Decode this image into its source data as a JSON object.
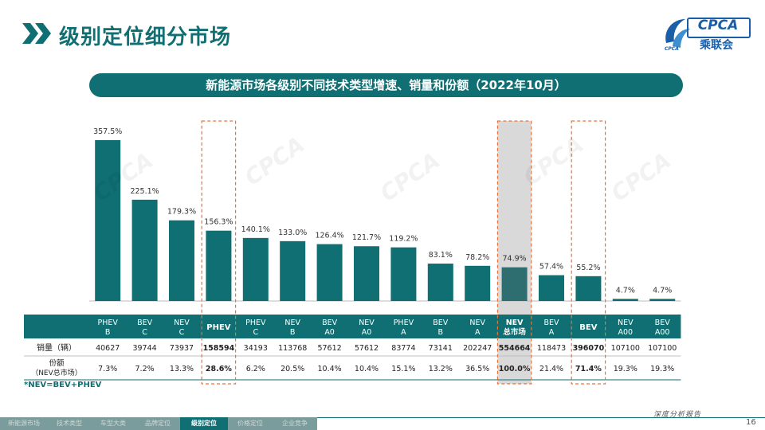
{
  "header": {
    "title": "级别定位细分市场",
    "logo_text": "CPCA",
    "logo_sub": "乘联会"
  },
  "chart_data": {
    "type": "bar",
    "title": "新能源市场各级别不同技术类型增速、销量和份额（2022年10月）",
    "categories": [
      "PHEV B",
      "BEV C",
      "NEV C",
      "PHEV",
      "PHEV C",
      "NEV B",
      "BEV A0",
      "NEV A0",
      "PHEV A",
      "BEV B",
      "NEV A",
      "NEV 总市场",
      "BEV A",
      "BEV",
      "NEV A00",
      "BEV A00"
    ],
    "values": [
      357.5,
      225.1,
      179.3,
      156.3,
      140.1,
      133.0,
      126.4,
      121.7,
      119.2,
      83.1,
      78.2,
      74.9,
      57.4,
      55.2,
      4.7,
      4.7
    ],
    "value_labels": [
      "357.5%",
      "225.1%",
      "179.3%",
      "156.3%",
      "140.1%",
      "133.0%",
      "126.4%",
      "121.7%",
      "119.2%",
      "83.1%",
      "78.2%",
      "74.9%",
      "57.4%",
      "55.2%",
      "4.7%",
      "4.7%"
    ],
    "ylim": [
      0,
      400
    ],
    "bar_color": "#0f6f72",
    "highlight_total_color": "#2e6e70",
    "highlighted_outline": [
      3,
      11,
      13
    ],
    "shaded_column": 11,
    "table": {
      "header_lines": [
        [
          "PHEV",
          "B"
        ],
        [
          "BEV",
          "C"
        ],
        [
          "NEV",
          "C"
        ],
        [
          "PHEV",
          ""
        ],
        [
          "PHEV",
          "C"
        ],
        [
          "NEV",
          "B"
        ],
        [
          "BEV",
          "A0"
        ],
        [
          "NEV",
          "A0"
        ],
        [
          "PHEV",
          "A"
        ],
        [
          "BEV",
          "B"
        ],
        [
          "NEV",
          "A"
        ],
        [
          "NEV",
          "总市场"
        ],
        [
          "BEV",
          "A"
        ],
        [
          "BEV",
          ""
        ],
        [
          "NEV",
          "A00"
        ],
        [
          "BEV",
          "A00"
        ]
      ],
      "bold_headers": [
        3,
        11,
        13
      ],
      "rows": [
        {
          "label": "销量（辆）",
          "values": [
            "40627",
            "39744",
            "73937",
            "158594",
            "34193",
            "113768",
            "57612",
            "57612",
            "83774",
            "73141",
            "202247",
            "554664",
            "118473",
            "396070",
            "107100",
            "107100"
          ]
        },
        {
          "label": "份额",
          "label2": "（NEV总市场）",
          "values": [
            "7.3%",
            "7.2%",
            "13.3%",
            "28.6%",
            "6.2%",
            "20.5%",
            "10.4%",
            "10.4%",
            "15.1%",
            "13.2%",
            "36.5%",
            "100.0%",
            "21.4%",
            "71.4%",
            "19.3%",
            "19.3%"
          ]
        }
      ]
    }
  },
  "footnote": "*NEV=BEV+PHEV",
  "slogan": "深度分析报告",
  "page_number": "16",
  "nav": [
    {
      "label": "新能源市场",
      "active": false
    },
    {
      "label": "技术类型",
      "active": false
    },
    {
      "label": "车型大类",
      "active": false
    },
    {
      "label": "品牌定位",
      "active": false
    },
    {
      "label": "级别定位",
      "active": true
    },
    {
      "label": "价格定位",
      "active": false
    },
    {
      "label": "企业竞争",
      "active": false
    }
  ]
}
